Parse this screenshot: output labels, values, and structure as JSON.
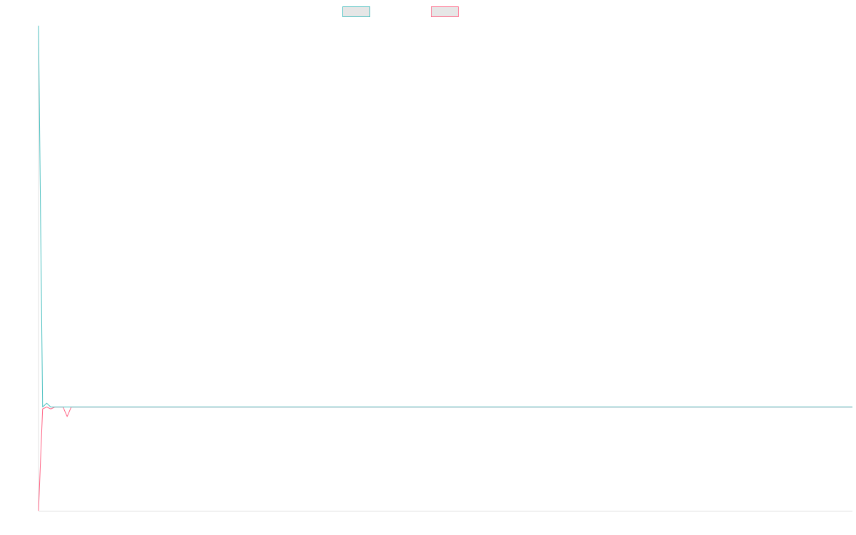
{
  "colors": {
    "series_a": "#4bc0c0",
    "series_a_fill": "#e6e6e6",
    "series_b": "#ff6384",
    "series_b_fill": "#e6e6e6",
    "axis": "#e0e0e0"
  },
  "chart_data": {
    "type": "line",
    "title": "",
    "xlabel": "",
    "ylabel": "",
    "grid": false,
    "legend": "top-center",
    "x": [
      0,
      1,
      2,
      3,
      4,
      5,
      6,
      7,
      8,
      9,
      10,
      20,
      40,
      60,
      80,
      100,
      120,
      140,
      160,
      180,
      199
    ],
    "ylim": [
      -0.272,
      1.0
    ],
    "series": [
      {
        "name": "",
        "color": "#4bc0c0",
        "values": [
          1.0,
          0.0,
          0.01,
          0.0,
          0.0,
          0.0,
          0.0,
          0.0,
          0.0,
          0.0,
          0.0,
          0.0,
          0.0,
          0.0,
          0.0,
          0.0,
          0.0,
          0.0,
          0.0,
          0.0,
          0.0
        ]
      },
      {
        "name": "",
        "color": "#ff6384",
        "values": [
          -0.272,
          -0.005,
          0.0,
          -0.005,
          0.0,
          0.0,
          0.0,
          -0.025,
          0.0,
          0.0,
          0.0,
          0.0,
          0.0,
          0.0,
          0.0,
          0.0,
          0.0,
          0.0,
          0.0,
          0.0,
          0.0
        ]
      }
    ]
  }
}
